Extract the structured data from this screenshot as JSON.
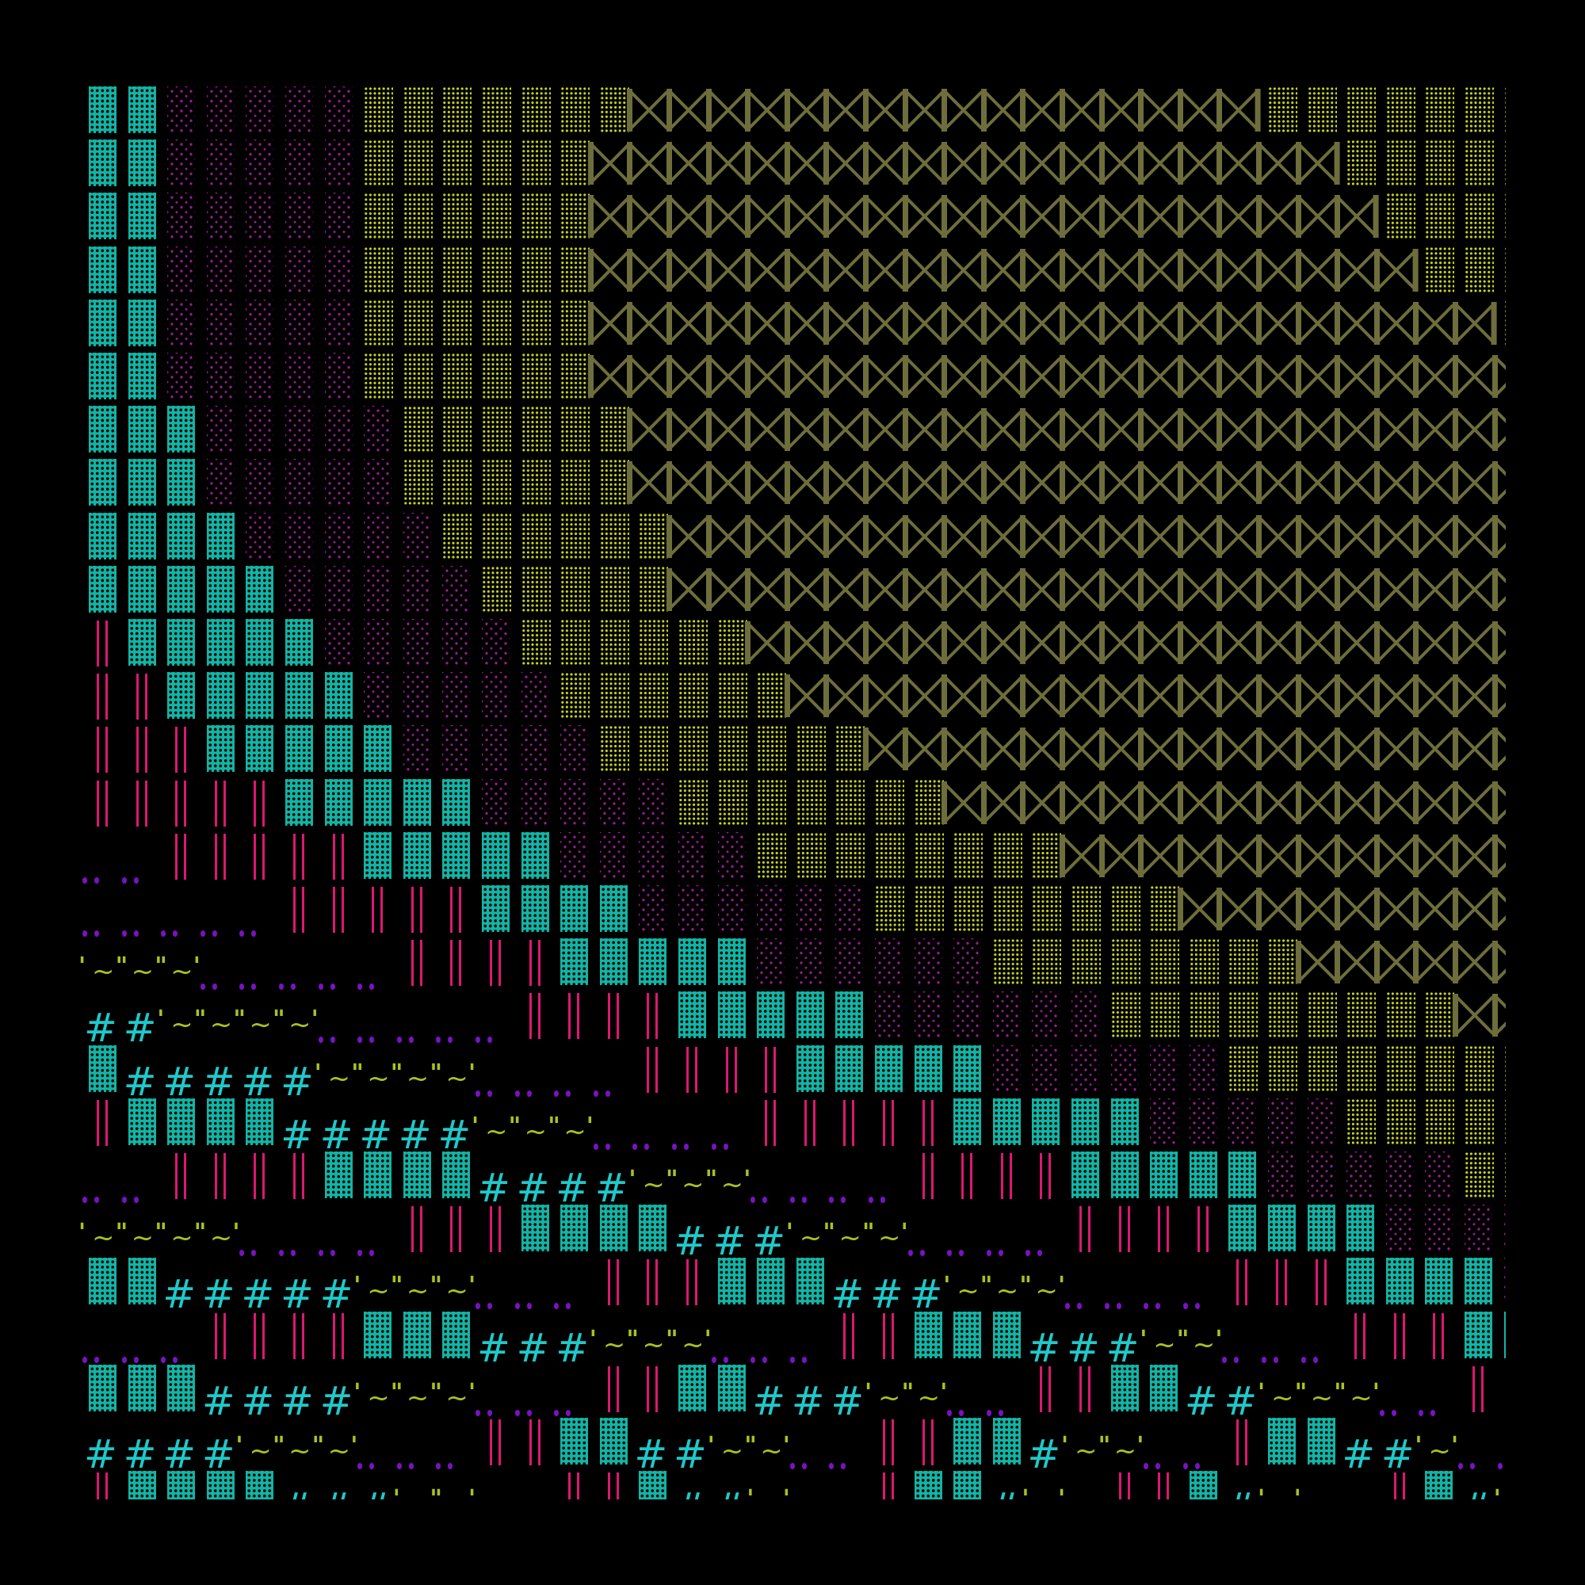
{
  "background": "#000000",
  "glyphs": {
    "T": {
      "name": "dark-shade-block",
      "color": "#12b5a5"
    },
    "M": {
      "name": "light-shade-block",
      "color": "#9a1a92"
    },
    "Y": {
      "name": "medium-shade-block",
      "color": "#c9d61c"
    },
    "B": {
      "name": "bowtie",
      "color": "#6e6e3c"
    },
    "P": {
      "name": "double-vertical-bar",
      "color": "#dc1872"
    },
    "D": {
      "name": "two-dot-leader",
      "color": "#7a12c4"
    },
    "W": {
      "name": "tilde-with-quotes",
      "color": "#a9c21e",
      "tilde": "~",
      "quote_single": "'",
      "quote_double": "\""
    },
    "H": {
      "name": "hash",
      "color": "#1fc9c9",
      "char": "#"
    }
  },
  "rows": [
    "T2 M5 Y7 B16 Y7",
    "T2 M5 Y6 B19 Y5",
    "T2 M5 Y6 B20 Y4",
    "T2 M5 Y6 B21 Y3",
    "T2 M5 Y6 B23 Y1",
    "T2 M5 Y6 B24",
    "T3 M5 Y6 B23",
    "T3 M5 Y6 B23",
    "T4 M5 Y6 B22",
    "T5 M5 Y5 B22",
    "P1 T5 M5 Y6 B20",
    "P2 T5 M5 Y6 B19",
    "P3 T5 M5 Y7 B17",
    "P5 T5 M5 Y7 B15",
    "D2 P5 T5 M5 Y8 B12",
    "D5 P5 T4 M6 Y8 B9",
    "W3 D5 P4 T5 M6 Y8 B6",
    "H2 W4 D5 P4 T5 M6 Y9 B2",
    "T1 H5 W4 D4 P4 T5 M6 Y8",
    "P1 T4 H5 W3 D4 P5 T5 M5 Y5",
    "D2 P4 T4 H4 W3 D4 P4 T5 M5 Y2",
    "W4 D4 P3 T4 H3 W3 D4 P4 T4 M4",
    "T2 H5 W3 D3 P3 T3 H3 W3 D4 P3 T4 M1",
    "D3 P4 T3 H3 W3 D3 P2 T3 H3 W2 D3 P3 T2",
    "T3 H4 W3 D3 P2 T2 H3 W2 D2 P2 T2 H2 W3 D2 P2",
    "H4 W3 D3 P2 T2 H2 W2 D2 P2 T2 H1 W2 D2 P1 T2 H2 W1 D2",
    "P1 T4 H3 W2 D2 P2 T1 H2 W1 D2 P1 T2 H1 W1 D1 P2 T1 H1 W1 D2 P1 T1 H1 W1"
  ]
}
